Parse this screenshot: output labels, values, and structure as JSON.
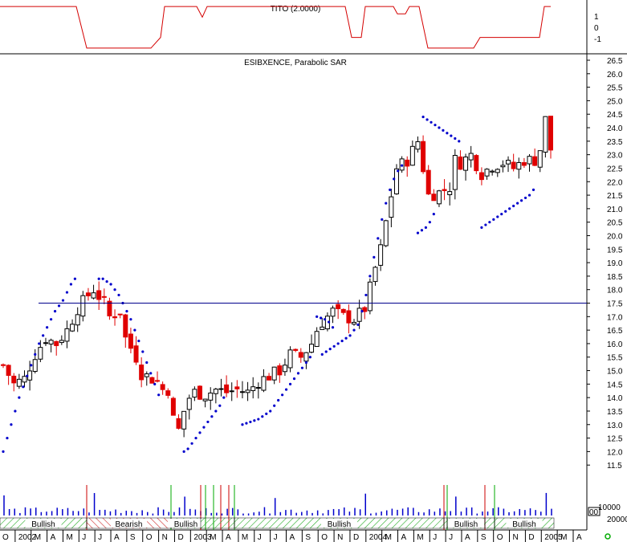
{
  "indicator_panel": {
    "title": "TITO (2.0000)",
    "y_ticks": [
      "1",
      "0",
      "-1"
    ],
    "line_color": "#d40000"
  },
  "price_panel": {
    "title": "ESIBXENCE, Parabolic SAR",
    "hline_value": 17.5,
    "hline_color": "#00008b",
    "up_color": "#000000",
    "down_color": "#e00000",
    "sar_color": "#0000cc"
  },
  "volume_panel": {
    "y_ticks": [
      "20000",
      "10000",
      "0"
    ],
    "label_00": "00",
    "bar_color": "#0000cc"
  },
  "signal_bands": [
    {
      "label": "Bullish",
      "type": "bullish"
    },
    {
      "label": "Bearish",
      "type": "bearish"
    },
    {
      "label": "Bullish",
      "type": "bullish"
    },
    {
      "label": "Bullish",
      "type": "bullish"
    },
    {
      "label": "Bullish",
      "type": "bullish"
    },
    {
      "label": "Bullish",
      "type": "bullish"
    }
  ],
  "x_axis_labels": [
    "O",
    "2002",
    "M",
    "A",
    "M",
    "J",
    "J",
    "A",
    "S",
    "O",
    "N",
    "D",
    "2003",
    "M",
    "A",
    "M",
    "J",
    "J",
    "A",
    "S",
    "O",
    "N",
    "D",
    "2004",
    "M",
    "A",
    "M",
    "J",
    "J",
    "A",
    "S",
    "O",
    "N",
    "D",
    "2005",
    "M",
    "A"
  ],
  "chart_data": {
    "type": "candlestick",
    "title": "ESIBXENCE, Parabolic SAR",
    "ylim": [
      11.0,
      26.5
    ],
    "y_ticks": [
      11.5,
      12.0,
      12.5,
      13.0,
      13.5,
      14.0,
      14.5,
      15.0,
      15.5,
      16.0,
      16.5,
      17.0,
      17.5,
      18.0,
      18.5,
      19.0,
      19.5,
      20.0,
      20.5,
      21.0,
      21.5,
      22.0,
      22.5,
      23.0,
      23.5,
      24.0,
      24.5,
      25.0,
      25.5,
      26.0,
      26.5
    ],
    "horizontal_line": 17.5,
    "close_path": [
      [
        0,
        15.2
      ],
      [
        2,
        14.5
      ],
      [
        4,
        14.7
      ],
      [
        6,
        15.6
      ],
      [
        8,
        16.2
      ],
      [
        10,
        16.0
      ],
      [
        12,
        16.5
      ],
      [
        14,
        17.3
      ],
      [
        16,
        17.8
      ],
      [
        17,
        18.0
      ],
      [
        19,
        17.5
      ],
      [
        20,
        17.0
      ],
      [
        22,
        17.2
      ],
      [
        23,
        16.2
      ],
      [
        25,
        15.5
      ],
      [
        26,
        14.9
      ],
      [
        28,
        14.7
      ],
      [
        29,
        14.6
      ],
      [
        30,
        14.3
      ],
      [
        31,
        14.3
      ],
      [
        32,
        13.2
      ],
      [
        33,
        12.8
      ],
      [
        34,
        13.5
      ],
      [
        35,
        14.0
      ],
      [
        36,
        14.2
      ],
      [
        38,
        14.1
      ],
      [
        40,
        14.3
      ],
      [
        42,
        14.2
      ],
      [
        44,
        14.3
      ],
      [
        46,
        14.2
      ],
      [
        48,
        14.6
      ],
      [
        50,
        14.8
      ],
      [
        52,
        15.0
      ],
      [
        54,
        15.6
      ],
      [
        56,
        15.5
      ],
      [
        58,
        16.0
      ],
      [
        59,
        16.5
      ],
      [
        60,
        16.8
      ],
      [
        62,
        17.2
      ],
      [
        64,
        17.0
      ],
      [
        66,
        16.9
      ],
      [
        68,
        17.3
      ],
      [
        70,
        18.8
      ],
      [
        71,
        19.5
      ],
      [
        72,
        20.5
      ],
      [
        73,
        21.5
      ],
      [
        74,
        22.5
      ],
      [
        76,
        22.8
      ],
      [
        78,
        23.5
      ],
      [
        79,
        22.5
      ],
      [
        80,
        21.5
      ],
      [
        82,
        21.6
      ],
      [
        84,
        21.8
      ],
      [
        85,
        22.8
      ],
      [
        86,
        22.7
      ],
      [
        88,
        23.0
      ],
      [
        90,
        22.3
      ],
      [
        92,
        22.6
      ],
      [
        94,
        22.7
      ],
      [
        96,
        22.5
      ],
      [
        98,
        22.8
      ],
      [
        100,
        22.8
      ],
      [
        101,
        23.2
      ],
      [
        102,
        24.3
      ],
      [
        103,
        23.2
      ]
    ],
    "sar_segments": [
      {
        "direction": "below",
        "start_x": 0,
        "points": [
          12.0,
          12.5,
          13.0,
          13.5,
          14.0,
          14.4,
          14.8,
          15.2,
          15.6,
          16.0,
          16.3,
          16.6,
          16.9,
          17.2,
          17.4,
          17.6,
          17.9,
          18.2,
          18.4
        ]
      },
      {
        "direction": "above",
        "start_x": 18,
        "points": [
          18.4,
          18.4,
          18.3,
          18.2,
          18.0,
          17.8,
          17.5,
          17.2,
          16.9,
          16.5,
          16.1,
          15.7,
          15.3,
          14.9,
          14.5,
          14.1
        ]
      },
      {
        "direction": "below",
        "start_x": 34,
        "points": [
          12.0,
          12.1,
          12.3,
          12.5,
          12.7,
          12.9,
          13.1,
          13.3,
          13.5,
          13.7,
          14.0
        ]
      },
      {
        "direction": "below",
        "start_x": 45,
        "points": [
          13.0,
          13.05,
          13.1,
          13.15,
          13.2,
          13.3,
          13.4,
          13.5,
          13.7,
          13.9,
          14.1,
          14.3,
          14.5,
          14.7,
          14.9,
          15.1,
          15.3,
          15.5
        ]
      },
      {
        "direction": "above",
        "start_x": 59,
        "points": [
          17.0,
          16.95,
          16.9,
          16.8,
          16.6
        ]
      },
      {
        "direction": "below",
        "start_x": 60,
        "points": [
          15.6,
          15.7,
          15.8,
          15.9,
          16.0,
          16.1,
          16.2,
          16.3,
          16.5,
          16.7,
          17.2,
          17.8,
          18.5,
          19.2,
          19.9,
          20.6,
          21.2,
          21.7,
          22.1,
          22.4,
          22.6
        ]
      },
      {
        "direction": "below",
        "start_x": 78,
        "points": [
          20.1,
          20.2,
          20.3,
          20.5,
          20.8
        ]
      },
      {
        "direction": "above",
        "start_x": 79,
        "points": [
          24.4,
          24.3,
          24.2,
          24.1,
          24.0,
          23.9,
          23.8,
          23.7,
          23.6,
          23.5
        ]
      },
      {
        "direction": "below",
        "start_x": 90,
        "points": [
          20.3,
          20.4,
          20.5,
          20.6,
          20.7,
          20.8,
          20.9,
          21.0,
          21.1,
          21.2,
          21.3,
          21.4,
          21.5,
          21.7
        ]
      }
    ]
  }
}
